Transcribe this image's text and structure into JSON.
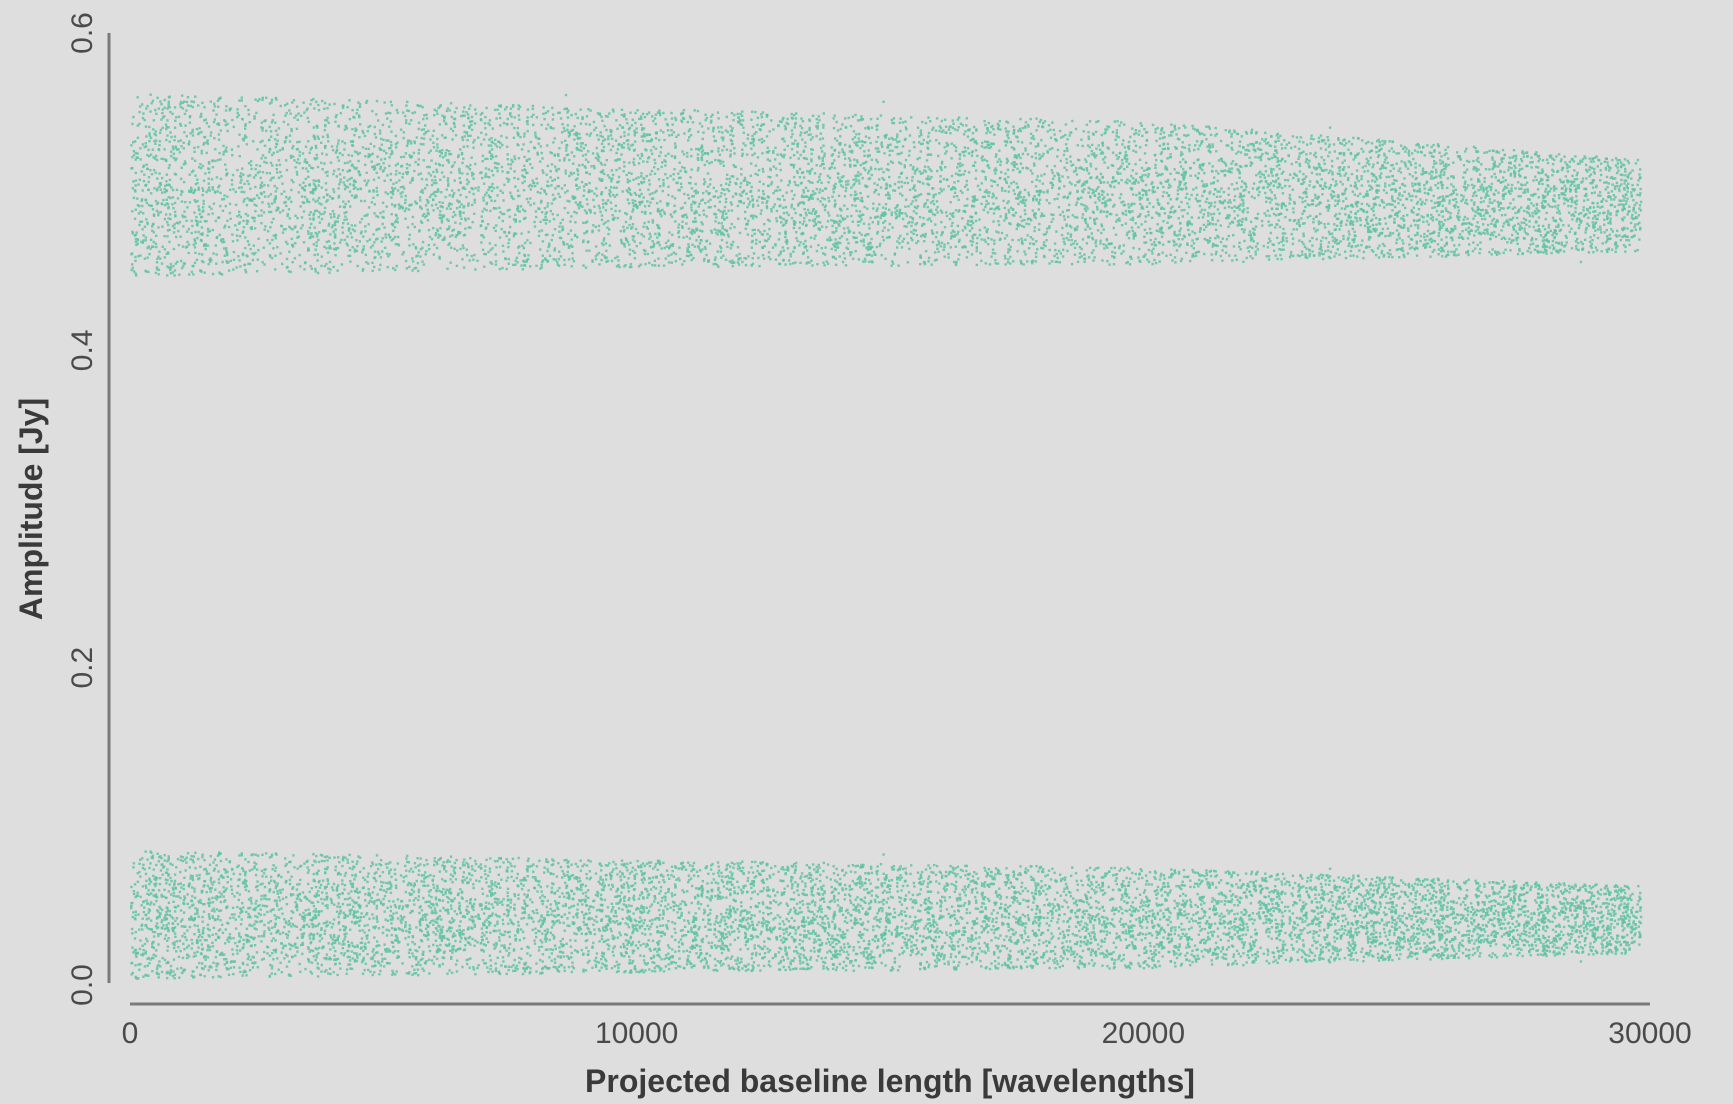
{
  "chart_data": {
    "type": "scatter",
    "title": "",
    "xlabel": "Projected baseline length [wavelengths]",
    "ylabel": "Amplitude [Jy]",
    "xlim": [
      0,
      30000
    ],
    "ylim": [
      0,
      0.6
    ],
    "x_ticks": [
      0,
      10000,
      20000,
      30000
    ],
    "x_tick_labels": [
      "0",
      "10000",
      "20000",
      "30000"
    ],
    "y_ticks": [
      0.0,
      0.2,
      0.4,
      0.6
    ],
    "y_tick_labels": [
      "0.0",
      "0.2",
      "0.4",
      "0.6"
    ],
    "grid": false,
    "legend": "none",
    "marker_color": "#5fc3a3",
    "background_color": "#dedede",
    "series": [
      {
        "x_range": [
          0,
          29800
        ],
        "center": [
          [
            0,
            0.505
          ],
          [
            10000,
            0.503
          ],
          [
            20000,
            0.5
          ],
          [
            29800,
            0.492
          ]
        ],
        "halfwidth": [
          [
            0,
            0.06
          ],
          [
            10000,
            0.052
          ],
          [
            20000,
            0.047
          ],
          [
            29800,
            0.03
          ]
        ]
      },
      {
        "x_range": [
          0,
          29800
        ],
        "center": [
          [
            0,
            0.045
          ],
          [
            10000,
            0.044
          ],
          [
            20000,
            0.043
          ],
          [
            29800,
            0.042
          ]
        ],
        "halfwidth": [
          [
            0,
            0.042
          ],
          [
            10000,
            0.037
          ],
          [
            20000,
            0.033
          ],
          [
            29800,
            0.022
          ]
        ]
      }
    ]
  }
}
